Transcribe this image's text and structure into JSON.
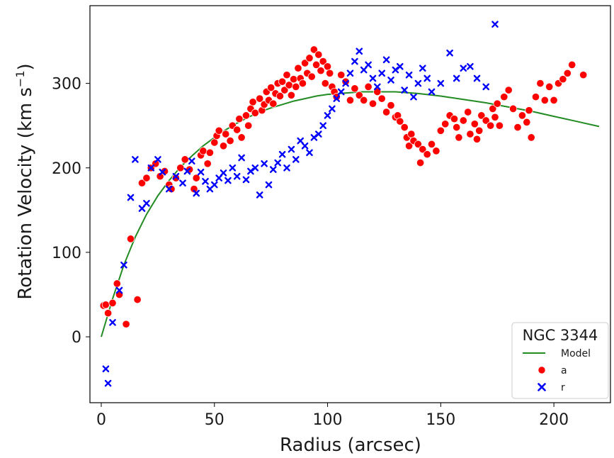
{
  "chart_data": {
    "type": "scatter",
    "title": "",
    "xlabel": "Radius (arcsec)",
    "ylabel_text": "Rotation Velocity (km s",
    "ylabel_sup": "−1",
    "ylabel_close": ")",
    "xlim": [
      -5,
      225
    ],
    "ylim": [
      -78,
      392
    ],
    "xticks": [
      0,
      50,
      100,
      150,
      200
    ],
    "yticks": [
      0,
      100,
      200,
      300
    ],
    "grid": false,
    "legend": {
      "title": "NGC 3344",
      "placement": "bottom-right",
      "entries": [
        {
          "label": "Model",
          "marker": "line",
          "color": "#228B22"
        },
        {
          "label": "a",
          "marker": "circle",
          "color": "#ff0000"
        },
        {
          "label": "r",
          "marker": "x",
          "color": "#0000ff"
        }
      ]
    },
    "series": [
      {
        "name": "Model",
        "kind": "line",
        "color": "#228B22",
        "x": [
          0,
          5,
          10,
          15,
          20,
          25,
          30,
          35,
          40,
          45,
          50,
          55,
          60,
          65,
          70,
          75,
          80,
          85,
          90,
          95,
          100,
          105,
          110,
          115,
          120,
          125,
          130,
          140,
          150,
          160,
          170,
          180,
          190,
          200,
          210,
          220
        ],
        "y": [
          0,
          45,
          85,
          118,
          145,
          167,
          185,
          201,
          214,
          226,
          236,
          245,
          253,
          260,
          266,
          271,
          275,
          279,
          282,
          285,
          287,
          288,
          289,
          290,
          290,
          290,
          290,
          288,
          285,
          281,
          277,
          272,
          267,
          261,
          255,
          249
        ]
      },
      {
        "name": "a",
        "kind": "scatter",
        "marker": "circle",
        "color": "#ff0000",
        "x": [
          1,
          2,
          3,
          5,
          7,
          8,
          11,
          13,
          16,
          18,
          20,
          22,
          24,
          26,
          28,
          30,
          31,
          33,
          35,
          37,
          39,
          41,
          42,
          44,
          45,
          47,
          48,
          50,
          51,
          52,
          54,
          55,
          57,
          58,
          60,
          61,
          62,
          64,
          65,
          66,
          67,
          68,
          70,
          71,
          72,
          73,
          74,
          75,
          76,
          77,
          78,
          79,
          80,
          81,
          82,
          83,
          84,
          85,
          86,
          87,
          88,
          89,
          90,
          91,
          92,
          93,
          94,
          95,
          96,
          97,
          98,
          99,
          100,
          101,
          102,
          103,
          104,
          106,
          108,
          110,
          112,
          114,
          116,
          118,
          120,
          122,
          124,
          126,
          128,
          130,
          131,
          132,
          134,
          135,
          136,
          137,
          138,
          140,
          141,
          142,
          144,
          146,
          148,
          150,
          152,
          154,
          156,
          157,
          158,
          160,
          162,
          163,
          165,
          166,
          167,
          168,
          170,
          172,
          173,
          174,
          175,
          176,
          178,
          180,
          182,
          184,
          186,
          188,
          189,
          190,
          192,
          194,
          196,
          198,
          200,
          202,
          204,
          206,
          208,
          213
        ],
        "y": [
          37,
          38,
          28,
          40,
          63,
          50,
          15,
          116,
          44,
          182,
          188,
          200,
          205,
          190,
          196,
          180,
          175,
          188,
          200,
          210,
          198,
          175,
          188,
          215,
          220,
          205,
          218,
          230,
          238,
          244,
          226,
          240,
          232,
          250,
          245,
          258,
          236,
          262,
          250,
          270,
          278,
          265,
          282,
          268,
          275,
          290,
          280,
          295,
          276,
          288,
          300,
          285,
          302,
          292,
          310,
          298,
          286,
          305,
          296,
          318,
          306,
          300,
          324,
          312,
          330,
          308,
          340,
          322,
          334,
          315,
          326,
          300,
          320,
          312,
          296,
          290,
          284,
          310,
          302,
          280,
          294,
          286,
          280,
          296,
          276,
          290,
          282,
          266,
          274,
          260,
          262,
          255,
          248,
          236,
          226,
          240,
          232,
          228,
          206,
          222,
          216,
          228,
          220,
          244,
          252,
          262,
          258,
          248,
          236,
          256,
          266,
          240,
          252,
          234,
          244,
          262,
          256,
          250,
          270,
          260,
          276,
          250,
          284,
          292,
          270,
          248,
          262,
          254,
          268,
          236,
          284,
          300,
          280,
          296,
          280,
          300,
          305,
          312,
          322,
          310
        ]
      },
      {
        "name": "r",
        "kind": "scatter",
        "marker": "x",
        "color": "#0000ff",
        "x": [
          2,
          3,
          5,
          8,
          10,
          13,
          15,
          18,
          20,
          22,
          25,
          27,
          30,
          33,
          36,
          38,
          40,
          42,
          44,
          46,
          48,
          50,
          52,
          54,
          56,
          58,
          60,
          62,
          64,
          66,
          68,
          70,
          72,
          74,
          76,
          78,
          80,
          82,
          84,
          86,
          88,
          90,
          92,
          94,
          96,
          98,
          100,
          102,
          104,
          106,
          108,
          110,
          112,
          114,
          116,
          118,
          120,
          122,
          124,
          126,
          128,
          130,
          132,
          134,
          136,
          138,
          140,
          142,
          144,
          146,
          150,
          154,
          157,
          160,
          163,
          166,
          170,
          174
        ],
        "y": [
          -38,
          -55,
          17,
          55,
          85,
          165,
          210,
          152,
          158,
          200,
          210,
          195,
          175,
          190,
          182,
          196,
          208,
          170,
          195,
          184,
          175,
          180,
          188,
          194,
          185,
          200,
          190,
          212,
          186,
          196,
          200,
          168,
          205,
          180,
          198,
          206,
          216,
          200,
          222,
          210,
          232,
          226,
          218,
          236,
          240,
          250,
          262,
          270,
          282,
          290,
          300,
          312,
          326,
          338,
          316,
          322,
          306,
          296,
          312,
          328,
          304,
          316,
          320,
          292,
          310,
          284,
          300,
          318,
          306,
          290,
          300,
          336,
          306,
          318,
          320,
          306,
          296,
          370
        ]
      }
    ]
  }
}
